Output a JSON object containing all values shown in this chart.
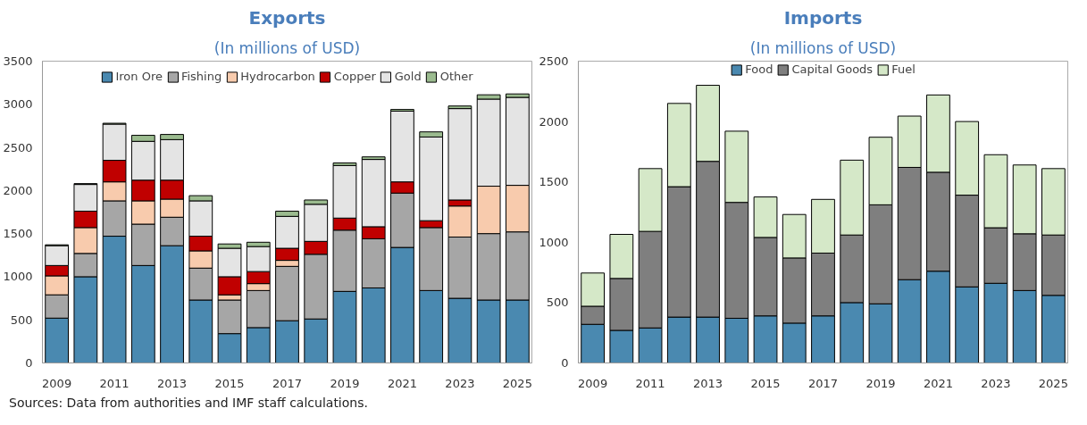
{
  "chart_data": [
    {
      "type": "bar",
      "title": "Exports",
      "subtitle": "(In millions of USD)",
      "stacked": true,
      "legend": "top",
      "grid": false,
      "categories": [
        "2009",
        null,
        "2011",
        null,
        "2013",
        null,
        "2015",
        null,
        "2017",
        null,
        "2019",
        null,
        "2021",
        null,
        "2023",
        null,
        "2025"
      ],
      "ylim": [
        0,
        3500
      ],
      "yticks": [
        0,
        500,
        1000,
        1500,
        2000,
        2500,
        3000,
        3500
      ],
      "series": [
        {
          "name": "Iron Ore",
          "color": "#4a89b0",
          "values": [
            520,
            1000,
            1470,
            1130,
            1360,
            730,
            340,
            410,
            490,
            510,
            830,
            870,
            1340,
            840,
            750,
            730,
            730
          ]
        },
        {
          "name": "Fishing",
          "color": "#a6a6a6",
          "values": [
            270,
            270,
            410,
            480,
            330,
            370,
            390,
            430,
            630,
            750,
            710,
            570,
            630,
            730,
            710,
            770,
            790
          ]
        },
        {
          "name": "Hydrocarbon",
          "color": "#f8cbad",
          "values": [
            220,
            300,
            220,
            270,
            210,
            200,
            60,
            80,
            70,
            0,
            0,
            0,
            0,
            0,
            360,
            550,
            540
          ]
        },
        {
          "name": "Copper",
          "color": "#c00000",
          "values": [
            120,
            190,
            250,
            240,
            220,
            170,
            210,
            140,
            140,
            150,
            140,
            140,
            130,
            80,
            70,
            0,
            0
          ]
        },
        {
          "name": "Gold",
          "color": "#e4e4e4",
          "values": [
            230,
            310,
            420,
            450,
            470,
            410,
            330,
            290,
            370,
            430,
            610,
            780,
            820,
            970,
            1060,
            1010,
            1020
          ]
        },
        {
          "name": "Other",
          "color": "#9bbb8f",
          "values": [
            10,
            10,
            10,
            70,
            60,
            60,
            50,
            50,
            60,
            50,
            30,
            30,
            20,
            60,
            30,
            50,
            40
          ]
        }
      ],
      "annotations": [
        "Sources: Data from authorities and IMF staff calculations."
      ]
    },
    {
      "type": "bar",
      "title": "Imports",
      "subtitle": "(In millions of USD)",
      "stacked": true,
      "legend": "top",
      "grid": false,
      "categories": [
        "2009",
        null,
        "2011",
        null,
        "2013",
        null,
        "2015",
        null,
        "2017",
        null,
        "2019",
        null,
        "2021",
        null,
        "2023",
        null,
        "2025"
      ],
      "ylim": [
        0,
        2500
      ],
      "yticks": [
        0,
        500,
        1000,
        1500,
        2000,
        2500
      ],
      "series": [
        {
          "name": "Food",
          "color": "#4a89b0",
          "values": [
            320,
            270,
            290,
            380,
            380,
            370,
            390,
            330,
            390,
            500,
            490,
            690,
            760,
            630,
            660,
            600,
            560
          ]
        },
        {
          "name": "Capital Goods",
          "color": "#7f7f7f",
          "values": [
            150,
            430,
            800,
            1080,
            1290,
            960,
            650,
            540,
            520,
            560,
            820,
            930,
            820,
            760,
            460,
            470,
            500
          ]
        },
        {
          "name": "Fuel",
          "color": "#d5e8c8",
          "values": [
            275,
            365,
            520,
            690,
            630,
            590,
            335,
            360,
            445,
            620,
            560,
            425,
            640,
            610,
            605,
            570,
            550
          ]
        }
      ]
    }
  ]
}
